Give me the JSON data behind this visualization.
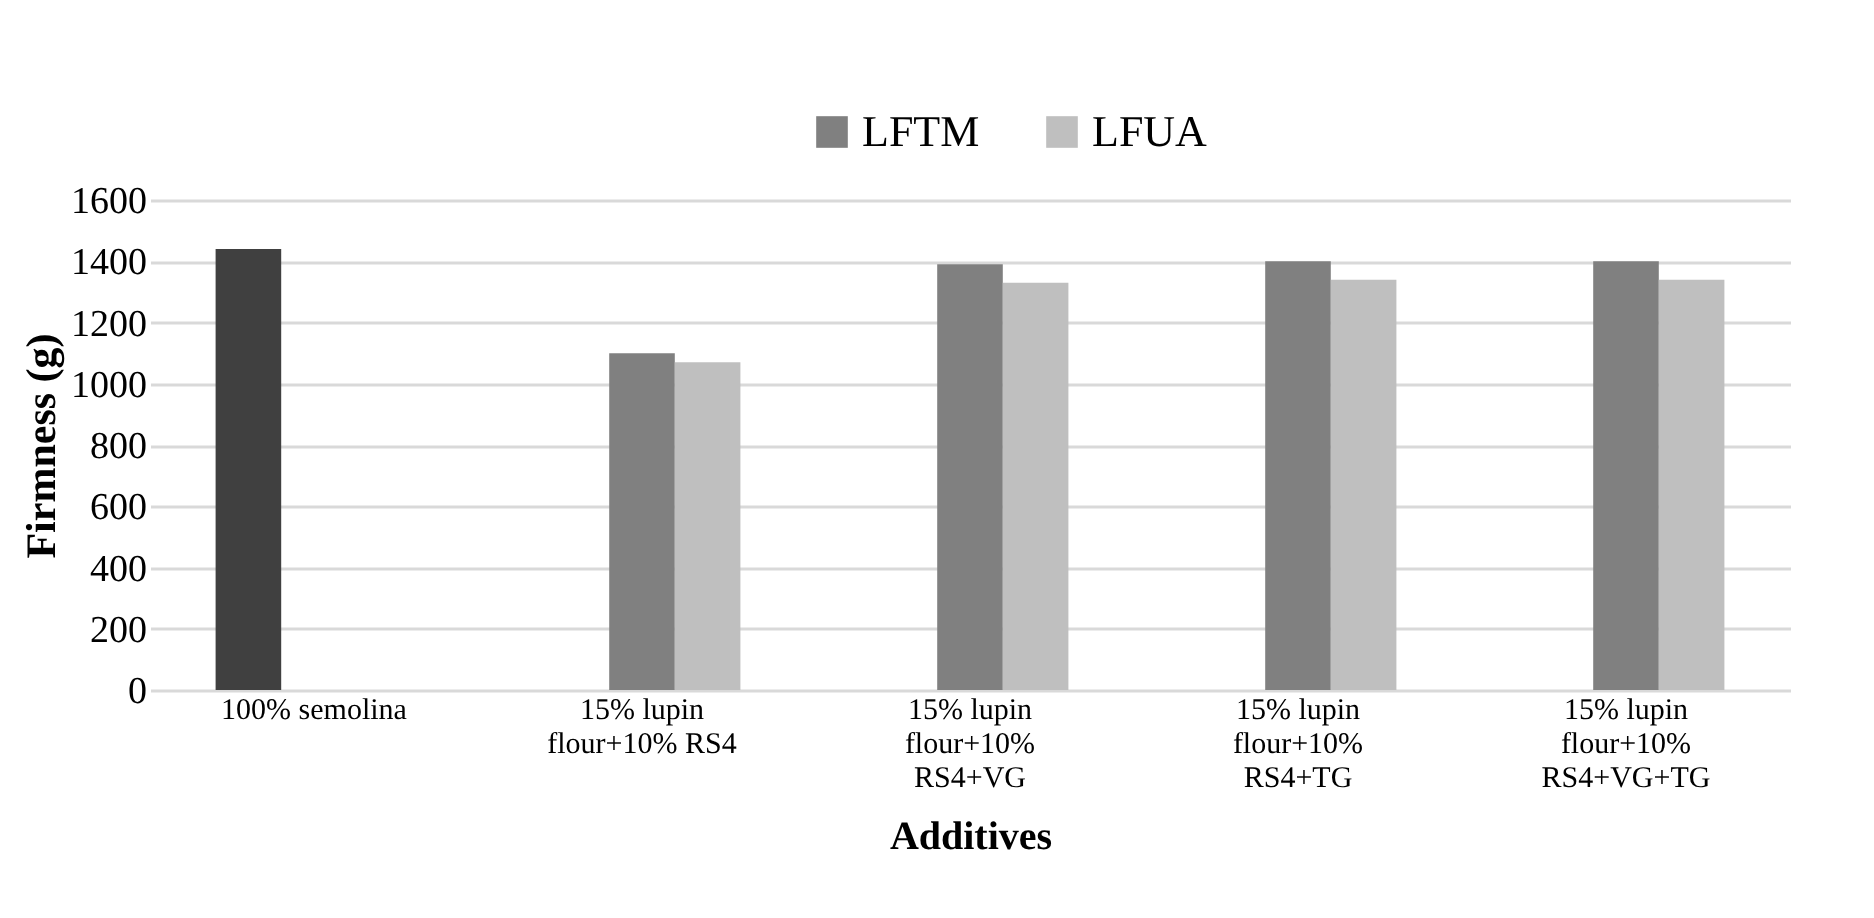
{
  "chart_data": {
    "type": "bar",
    "xlabel": "Additives",
    "ylabel": "Firmness (g)",
    "categories": [
      "100% semolina",
      "15% lupin flour+10% RS4",
      "15% lupin flour+10% RS4+VG",
      "15% lupin flour+10% RS4+TG",
      "15% lupin flour+10% RS4+VG+TG"
    ],
    "series": [
      {
        "color": "#404040",
        "values": [
          1440,
          null,
          null,
          null,
          null
        ]
      },
      {
        "name": "LFTM",
        "color": "#808080",
        "values": [
          null,
          1100,
          1390,
          1400,
          1400
        ]
      },
      {
        "name": "LFUA",
        "color": "#bfbfbf",
        "values": [
          null,
          1070,
          1330,
          1340,
          1340
        ]
      }
    ],
    "ylim": [
      0,
      1600
    ],
    "yticks": [
      0,
      200,
      400,
      600,
      800,
      1000,
      1200,
      1400,
      1600
    ],
    "grid": "y",
    "legend": "top"
  }
}
